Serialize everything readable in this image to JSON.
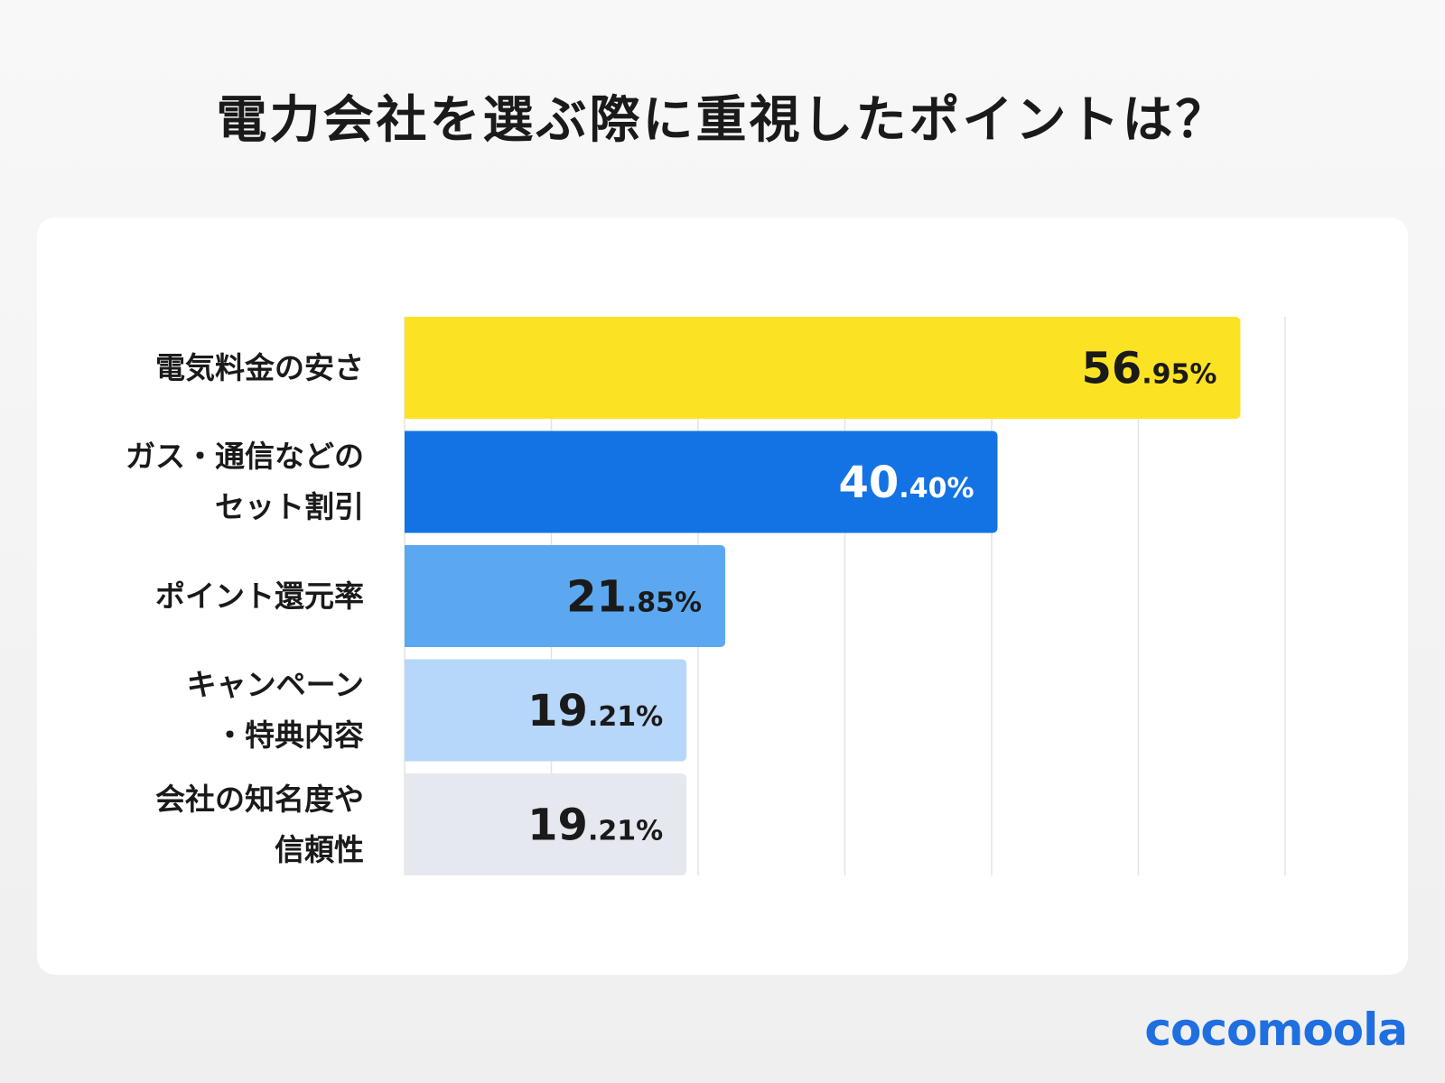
{
  "chart_data": {
    "type": "bar",
    "orientation": "horizontal",
    "title": "電力会社を選ぶ際に重視したポイントは？",
    "categories": [
      "電気料金の安さ",
      "ガス・通信などの\nセット割引",
      "ポイント還元率",
      "キャンペーン\n・特典内容",
      "会社の知名度や\n信頼性"
    ],
    "values": [
      56.95,
      40.4,
      21.85,
      19.21,
      19.21
    ],
    "value_labels": [
      "56.95%",
      "40.40%",
      "21.85%",
      "19.21%",
      "19.21%"
    ],
    "colors": [
      "#FBE324",
      "#1473E4",
      "#5CA8F0",
      "#B6D7F9",
      "#E5E9EF"
    ],
    "label_colors": [
      "#1a1a1a",
      "#ffffff",
      "#1a1a1a",
      "#1a1a1a",
      "#1a1a1a"
    ],
    "xlim": [
      0,
      60
    ],
    "grid": true,
    "xlabel": "",
    "ylabel": ""
  },
  "brand": "cocomoola"
}
